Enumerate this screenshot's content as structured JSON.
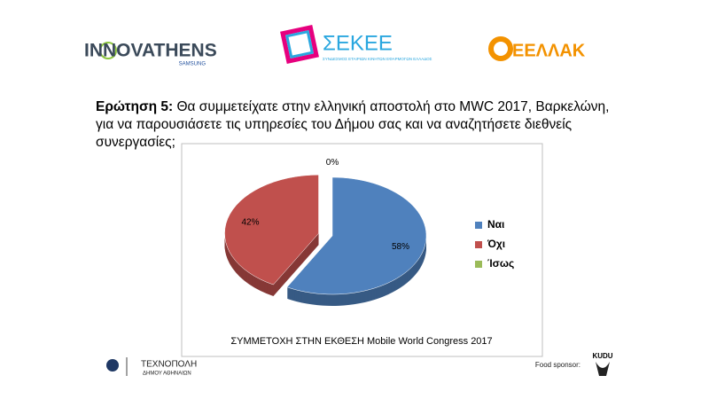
{
  "logos": {
    "innovathens": "INNOVATHENS",
    "innovathens_sub": "SAMSUNG",
    "sekee": "ΣΕΚΕΕ",
    "sekee_sub": "ΣΥΝΔΕΣΜΟΣ ΕΤΑΙΡΙΩΝ ΚΙΝΗΤΩΝ ΕΦΑΡΜΟΓΩΝ ΕΛΛΑΔΟΣ",
    "eellak": "ΕΕΛΛΑΚ",
    "technopoli": "ΤΕΧΝΟΠΟΛΗ",
    "technopoli_sub": "ΔΗΜΟΥ ΑΘΗΝΑΙΩΝ",
    "food_sponsor": "Food sponsor:",
    "kudu": "KUDU"
  },
  "question": {
    "label": "Ερώτηση 5:",
    "text": "Θα συμμετείχατε στην ελληνική αποστολή στο MWC 2017, Βαρκελώνη, για να παρουσιάσετε τις υπηρεσίες του Δήμου σας και να αναζητήσετε διεθνείς συνεργασίες;"
  },
  "chart_data": {
    "type": "pie",
    "title": "ΣΥΜΜΕΤΟΧΗ ΣΤΗΝ ΕΚΘΕΣΗ Mobile World Congress 2017",
    "categories": [
      "Ναι",
      "Όχι",
      "Ίσως"
    ],
    "values": [
      58,
      42,
      0
    ],
    "value_labels": [
      "58%",
      "42%",
      "0%"
    ],
    "colors": [
      "#4f81bd",
      "#c0504d",
      "#9bbb59"
    ],
    "legend": "right",
    "exploded": [
      1
    ]
  }
}
